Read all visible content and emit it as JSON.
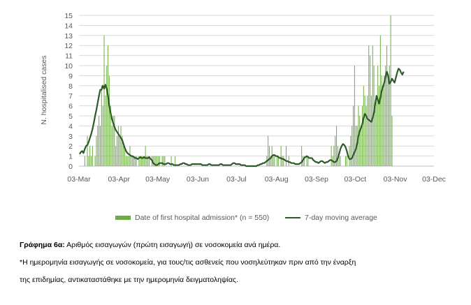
{
  "chart_data": {
    "type": "bar",
    "ylabel": "N. hospitalised cases",
    "ylim": [
      0,
      15
    ],
    "yticks": [
      0,
      1,
      2,
      3,
      4,
      5,
      6,
      7,
      8,
      9,
      10,
      11,
      12,
      13,
      14,
      15
    ],
    "xlabels": [
      "03-Mar",
      "03-Apr",
      "03-May",
      "03-Jun",
      "03-Jul",
      "03-Aug",
      "03-Sep",
      "03-Oct",
      "03-Nov",
      "03-Dec"
    ],
    "start_date": "2020-03-03",
    "end_date": "2020-12-03",
    "grid": true,
    "legend_position": "bottom",
    "series": [
      {
        "name": "Date of first hospital admission* (n = 550)",
        "type": "bar",
        "color": "#70ad47",
        "values": [
          0,
          0,
          0,
          0,
          1,
          0,
          3,
          1,
          2,
          1,
          2,
          0,
          1,
          3,
          4,
          5,
          4,
          8,
          6,
          13,
          7,
          10,
          12,
          9,
          6,
          4,
          5,
          5,
          2,
          3,
          4,
          3,
          4,
          3,
          2,
          2,
          1,
          1,
          1,
          2,
          1,
          1,
          1,
          1,
          1,
          0,
          1,
          1,
          1,
          1,
          1,
          2,
          1,
          1,
          1,
          0,
          1,
          1,
          1,
          1,
          1,
          1,
          1,
          0,
          1,
          1,
          1,
          0,
          0,
          0,
          0,
          1,
          0,
          0,
          1,
          0,
          0,
          0,
          0,
          0,
          0,
          0,
          0,
          0,
          0,
          0,
          0,
          0,
          0,
          0,
          0,
          0,
          0,
          0,
          0,
          0,
          0,
          0,
          0,
          0,
          0,
          0,
          0,
          0,
          0,
          0,
          0,
          0,
          0,
          0,
          0,
          0,
          0,
          0,
          0,
          0,
          0,
          0,
          0,
          0,
          0,
          0,
          0,
          0,
          0,
          0,
          0,
          0,
          0,
          0,
          0,
          0,
          0,
          0,
          0,
          0,
          0,
          0,
          0,
          0,
          0,
          0,
          0,
          0,
          0,
          1,
          3,
          2,
          1,
          2,
          1,
          1,
          0,
          1,
          1,
          0,
          2,
          1,
          1,
          0,
          2,
          0,
          1,
          0,
          0,
          0,
          0,
          0,
          0,
          0,
          0,
          0,
          2,
          1,
          1,
          0,
          1,
          1,
          0,
          0,
          0,
          0,
          0,
          0,
          0,
          0,
          0,
          0,
          0,
          0,
          0,
          0,
          0,
          0,
          0,
          2,
          1,
          2,
          3,
          4,
          2,
          1,
          1,
          0,
          0,
          0,
          1,
          1,
          0,
          2,
          3,
          4,
          6,
          10,
          4,
          4,
          6,
          5,
          4,
          6,
          8,
          7,
          6,
          7,
          12,
          11,
          7,
          12,
          10,
          6,
          7,
          10,
          8,
          13,
          9,
          8,
          9,
          10,
          12,
          9,
          10,
          15,
          5
        ],
        "note_values_estimated": "daily bars read approximately from gridlines"
      },
      {
        "name": "7-day moving average",
        "type": "line",
        "color": "#2e5a2a",
        "values": [
          1.2,
          1.4,
          1.5,
          1.3,
          1.7,
          2.0,
          2.1,
          2.4,
          2.8,
          3.2,
          3.7,
          4.3,
          5.0,
          5.6,
          6.3,
          7.0,
          7.6,
          7.6,
          8.0,
          7.7,
          8.1,
          7.7,
          7.0,
          6.0,
          5.3,
          4.7,
          4.3,
          3.9,
          3.6,
          3.4,
          3.2,
          3.0,
          2.8,
          2.6,
          2.2,
          1.8,
          1.5,
          1.3,
          1.2,
          1.1,
          1.0,
          1.0,
          0.9,
          0.8,
          0.8,
          0.7,
          0.8,
          0.9,
          0.8,
          0.8,
          0.9,
          0.8,
          0.8,
          0.8,
          0.9,
          0.7,
          0.6,
          0.3,
          0.2,
          0.1,
          0.1,
          0.2,
          0.3,
          0.3,
          0.3,
          0.2,
          0.2,
          0.2,
          0.3,
          0.3,
          0.2,
          0.2,
          0.2,
          0.1,
          0.1,
          0.1,
          0.1,
          0.1,
          0.2,
          0.2,
          0.3,
          0.3,
          0.2,
          0.2,
          0.1,
          0.1,
          0.1,
          0.2,
          0.2,
          0.2,
          0.2,
          0.2,
          0.2,
          0.2,
          0.2,
          0.1,
          0.1,
          0.1,
          0.1,
          0.1,
          0.2,
          0.2,
          0.1,
          0.1,
          0.1,
          0.1,
          0.1,
          0.1,
          0.1,
          0.2,
          0.2,
          0.1,
          0.1,
          0.1,
          0.1,
          0.1,
          0.1,
          0.1,
          0.2,
          0.3,
          0.3,
          0.2,
          0.2,
          0.2,
          0.2,
          0.1,
          0.1,
          0.1,
          0.1,
          0.0,
          0.0,
          0.0,
          0.0,
          0.0,
          0.0,
          0.0,
          0.0,
          0.0,
          0.1,
          0.1,
          0.2,
          0.2,
          0.3,
          0.3,
          0.4,
          0.5,
          0.6,
          0.7,
          0.8,
          1.0,
          1.1,
          1.1,
          1.0,
          1.0,
          0.9,
          0.8,
          0.8,
          0.7,
          0.7,
          0.6,
          0.5,
          0.5,
          0.4,
          0.4,
          0.3,
          0.3,
          0.3,
          0.2,
          0.2,
          0.2,
          0.2,
          0.3,
          0.4,
          0.6,
          0.8,
          0.9,
          1.0,
          0.9,
          0.8,
          0.8,
          0.8,
          0.6,
          0.5,
          0.4,
          0.4,
          0.3,
          0.4,
          0.5,
          0.5,
          0.4,
          0.3,
          0.4,
          0.4,
          0.5,
          0.6,
          0.6,
          0.5,
          0.4,
          0.4,
          0.5,
          0.8,
          1.2,
          1.7,
          2.0,
          2.2,
          2.1,
          1.9,
          1.5,
          1.0,
          0.7,
          0.7,
          0.8,
          1.1,
          1.4,
          1.7,
          2.2,
          3.0,
          3.5,
          3.8,
          4.2,
          4.8,
          5.2,
          5.0,
          4.7,
          4.6,
          4.5,
          4.4,
          4.8,
          5.3,
          6.2,
          7.0,
          6.6,
          6.2,
          6.8,
          7.5,
          7.9,
          8.3,
          8.9,
          9.4,
          9.0,
          8.2,
          8.4,
          8.7,
          8.5,
          8.3,
          8.8,
          9.3,
          9.7,
          9.6,
          9.3,
          9.1,
          9.4
        ]
      }
    ]
  },
  "caption": {
    "title_bold": "Γράφημα 6α:",
    "title_rest": " Αριθμός εισαγωγών (πρώτη εισαγωγή) σε νοσοκομεία ανά ημέρα.",
    "note_line1": "*Η ημερομηνία εισαγωγής σε νοσοκομεία, για τους/τις ασθενείς που νοσηλεύτηκαν πριν από την έναρξη",
    "note_line2": "της επιδημίας, αντικαταστάθηκε με την ημερομηνία δειγματοληψίας."
  }
}
